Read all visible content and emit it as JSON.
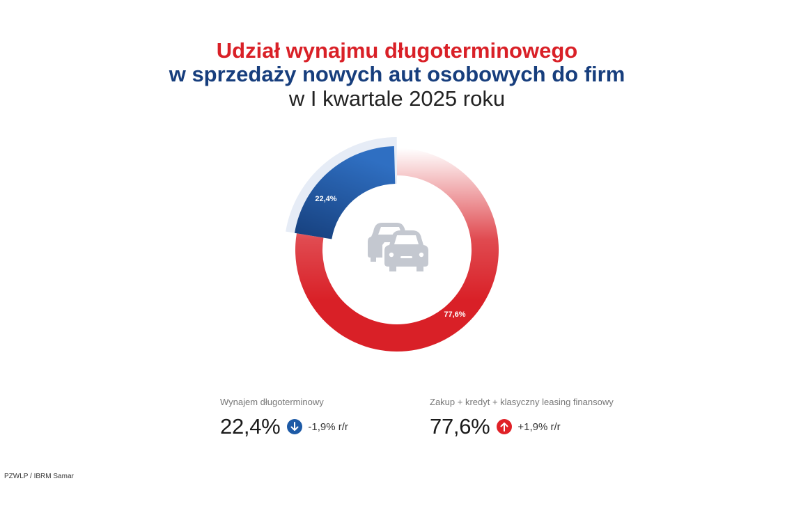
{
  "header": {
    "title_line1": "Udział wynajmu długoterminowego",
    "title_line2": "w sprzedaży nowych aut osobowych do firm",
    "title_line3": "w I kwartale 2025 roku"
  },
  "chart_data": {
    "type": "pie",
    "variant": "donut",
    "title": "Udział wynajmu długoterminowego w sprzedaży nowych aut osobowych do firm w I kwartale 2025 roku",
    "slices": [
      {
        "name": "Wynajem długoterminowy",
        "value": 22.4,
        "label": "22,4%",
        "color": "#2563b2"
      },
      {
        "name": "Zakup + kredyt + klasyczny leasing finansowy",
        "value": 77.6,
        "label": "77,6%",
        "color": "#d92027"
      }
    ],
    "center_icon": "cars-icon"
  },
  "legend": {
    "left": {
      "caption": "Wynajem długoterminowy",
      "value": "22,4%",
      "change": "-1,9% r/r",
      "direction": "down",
      "badge_color": "#1d5aa6",
      "icon": "arrow-down-icon"
    },
    "right": {
      "caption": "Zakup + kredyt + klasyczny leasing finansowy",
      "value": "77,6%",
      "change": "+1,9% r/r",
      "direction": "up",
      "badge_color": "#e02127",
      "icon": "arrow-up-icon"
    }
  },
  "footer": {
    "source": "PZWLP / IBRM Samar"
  }
}
